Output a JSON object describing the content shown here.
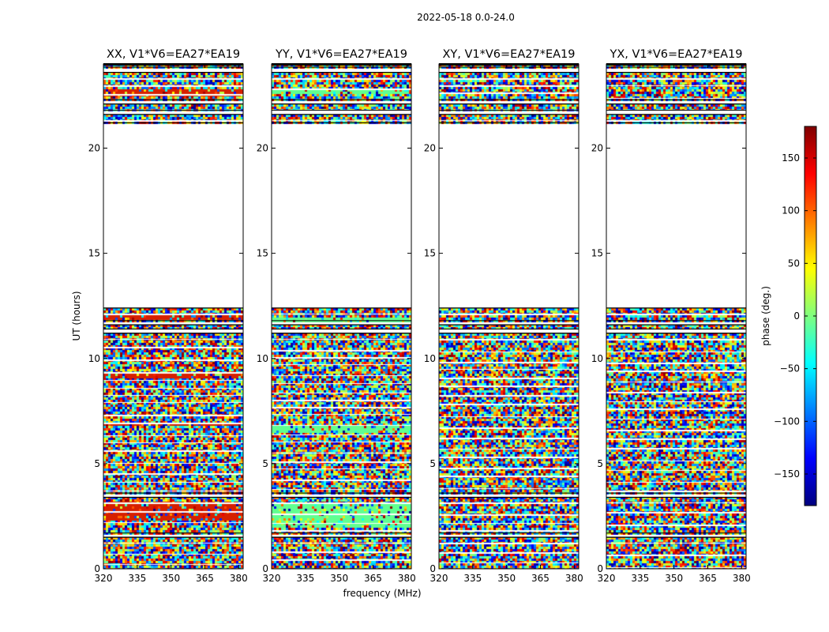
{
  "figure": {
    "suptitle": "2022-05-18 0.0-24.0"
  },
  "chart_data": {
    "type": "heatmap",
    "xlabel": "frequency (MHz)",
    "ylabel": "UT (hours)",
    "xlim": [
      320,
      382
    ],
    "ylim": [
      0,
      24
    ],
    "x_ticks": [
      320,
      335,
      350,
      365,
      380
    ],
    "x_tick_labels": [
      "320",
      "335",
      "350",
      "365",
      "380"
    ],
    "y_ticks": [
      0,
      5,
      10,
      15,
      20
    ],
    "y_tick_labels": [
      "0",
      "5",
      "10",
      "15",
      "20"
    ],
    "panels": [
      {
        "title": "XX, V1*V6=EA27*EA19",
        "tint": "#d62000",
        "tint_bands": [
          [
            2.3,
            3.2
          ],
          [
            6.8,
            7.0
          ],
          [
            9.1,
            9.3
          ],
          [
            11.9,
            12.1
          ],
          [
            22.5,
            22.9
          ]
        ]
      },
      {
        "title": "YY, V1*V6=EA27*EA19",
        "tint": "#60ff90",
        "tint_bands": [
          [
            2.0,
            3.1
          ],
          [
            6.5,
            6.9
          ],
          [
            11.8,
            12.0
          ],
          [
            22.6,
            22.9
          ]
        ]
      },
      {
        "title": "XY, V1*V6=EA27*EA19",
        "tint": null,
        "tint_bands": []
      },
      {
        "title": "YX, V1*V6=EA27*EA19",
        "tint": null,
        "tint_bands": []
      }
    ],
    "data_bands_hours": [
      [
        0.0,
        1.5
      ],
      [
        1.7,
        3.4
      ],
      [
        3.6,
        11.2
      ],
      [
        11.4,
        11.6
      ],
      [
        11.8,
        12.4
      ],
      [
        21.2,
        21.6
      ],
      [
        21.8,
        22.1
      ],
      [
        22.3,
        23.6
      ],
      [
        23.85,
        24.0
      ]
    ],
    "colorbar": {
      "label": "phase (deg.)",
      "range": [
        -180,
        180
      ],
      "ticks": [
        150,
        100,
        50,
        0,
        -50,
        -100,
        -150
      ],
      "tick_labels": [
        "150",
        "100",
        "50",
        "0",
        "−50",
        "−100",
        "−150"
      ],
      "colors": [
        "#00007f",
        "#0000ff",
        "#007fff",
        "#00ffff",
        "#7fff7f",
        "#ffff00",
        "#ff7f00",
        "#ff0000",
        "#7f0000"
      ]
    }
  }
}
